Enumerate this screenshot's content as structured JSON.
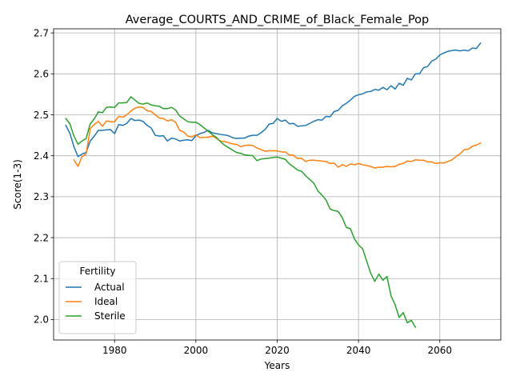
{
  "chart_data": {
    "type": "line",
    "title": "Average_COURTS_AND_CRIME_of_Black_Female_Pop",
    "xlabel": "Years",
    "ylabel": "Score(1-3)",
    "xlim": [
      1965,
      2075
    ],
    "ylim": [
      1.95,
      2.71
    ],
    "xticks": [
      1980,
      2000,
      2020,
      2040,
      2060
    ],
    "yticks": [
      "2.0",
      "2.1",
      "2.2",
      "2.3",
      "2.4",
      "2.5",
      "2.6",
      "2.7"
    ],
    "grid": true,
    "legend": {
      "title": "Fertility",
      "placement": "lower-left"
    },
    "series": [
      {
        "name": "Actual",
        "color": "#1f77b4",
        "points": [
          [
            1968,
            2.474
          ],
          [
            1969,
            2.455
          ],
          [
            1970,
            2.422
          ],
          [
            1971,
            2.398
          ],
          [
            1972,
            2.404
          ],
          [
            1973,
            2.408
          ],
          [
            1974,
            2.436
          ],
          [
            1975,
            2.448
          ],
          [
            1976,
            2.462
          ],
          [
            1977,
            2.462
          ],
          [
            1978,
            2.463
          ],
          [
            1979,
            2.464
          ],
          [
            1980,
            2.454
          ],
          [
            1981,
            2.476
          ],
          [
            1982,
            2.474
          ],
          [
            1983,
            2.479
          ],
          [
            1984,
            2.491
          ],
          [
            1985,
            2.486
          ],
          [
            1986,
            2.487
          ],
          [
            1987,
            2.484
          ],
          [
            1988,
            2.474
          ],
          [
            1989,
            2.468
          ],
          [
            1990,
            2.45
          ],
          [
            1991,
            2.448
          ],
          [
            1992,
            2.449
          ],
          [
            1993,
            2.436
          ],
          [
            1994,
            2.443
          ],
          [
            1995,
            2.441
          ],
          [
            1996,
            2.436
          ],
          [
            1997,
            2.438
          ],
          [
            1998,
            2.439
          ],
          [
            1999,
            2.437
          ],
          [
            2000,
            2.449
          ],
          [
            2001,
            2.454
          ],
          [
            2002,
            2.457
          ],
          [
            2003,
            2.462
          ],
          [
            2004,
            2.456
          ],
          [
            2005,
            2.454
          ],
          [
            2006,
            2.452
          ],
          [
            2007,
            2.451
          ],
          [
            2008,
            2.449
          ],
          [
            2009,
            2.444
          ],
          [
            2010,
            2.442
          ],
          [
            2011,
            2.443
          ],
          [
            2012,
            2.443
          ],
          [
            2013,
            2.448
          ],
          [
            2014,
            2.45
          ],
          [
            2015,
            2.45
          ],
          [
            2016,
            2.456
          ],
          [
            2017,
            2.464
          ],
          [
            2018,
            2.477
          ],
          [
            2019,
            2.479
          ],
          [
            2020,
            2.491
          ],
          [
            2021,
            2.484
          ],
          [
            2022,
            2.487
          ],
          [
            2023,
            2.478
          ],
          [
            2024,
            2.479
          ],
          [
            2025,
            2.472
          ],
          [
            2026,
            2.473
          ],
          [
            2027,
            2.474
          ],
          [
            2028,
            2.479
          ],
          [
            2029,
            2.484
          ],
          [
            2030,
            2.488
          ],
          [
            2031,
            2.487
          ],
          [
            2032,
            2.496
          ],
          [
            2033,
            2.495
          ],
          [
            2034,
            2.508
          ],
          [
            2035,
            2.511
          ],
          [
            2036,
            2.522
          ],
          [
            2037,
            2.528
          ],
          [
            2038,
            2.536
          ],
          [
            2039,
            2.545
          ],
          [
            2040,
            2.549
          ],
          [
            2041,
            2.551
          ],
          [
            2042,
            2.556
          ],
          [
            2043,
            2.557
          ],
          [
            2044,
            2.562
          ],
          [
            2045,
            2.56
          ],
          [
            2046,
            2.567
          ],
          [
            2047,
            2.561
          ],
          [
            2048,
            2.571
          ],
          [
            2049,
            2.563
          ],
          [
            2050,
            2.577
          ],
          [
            2051,
            2.572
          ],
          [
            2052,
            2.589
          ],
          [
            2053,
            2.585
          ],
          [
            2054,
            2.6
          ],
          [
            2055,
            2.6
          ],
          [
            2056,
            2.615
          ],
          [
            2057,
            2.618
          ],
          [
            2058,
            2.631
          ],
          [
            2059,
            2.636
          ],
          [
            2060,
            2.646
          ],
          [
            2061,
            2.651
          ],
          [
            2062,
            2.655
          ],
          [
            2063,
            2.657
          ],
          [
            2064,
            2.658
          ],
          [
            2065,
            2.656
          ],
          [
            2066,
            2.658
          ],
          [
            2067,
            2.656
          ],
          [
            2068,
            2.663
          ],
          [
            2069,
            2.662
          ],
          [
            2070,
            2.675
          ]
        ]
      },
      {
        "name": "Ideal",
        "color": "#ff7f0e",
        "points": [
          [
            1970,
            2.39
          ],
          [
            1971,
            2.374
          ],
          [
            1972,
            2.398
          ],
          [
            1973,
            2.404
          ],
          [
            1974,
            2.466
          ],
          [
            1975,
            2.476
          ],
          [
            1976,
            2.484
          ],
          [
            1977,
            2.472
          ],
          [
            1978,
            2.485
          ],
          [
            1979,
            2.483
          ],
          [
            1980,
            2.483
          ],
          [
            1981,
            2.496
          ],
          [
            1982,
            2.494
          ],
          [
            1983,
            2.5
          ],
          [
            1984,
            2.509
          ],
          [
            1985,
            2.516
          ],
          [
            1986,
            2.519
          ],
          [
            1987,
            2.518
          ],
          [
            1988,
            2.51
          ],
          [
            1989,
            2.508
          ],
          [
            1990,
            2.5
          ],
          [
            1991,
            2.492
          ],
          [
            1992,
            2.491
          ],
          [
            1993,
            2.485
          ],
          [
            1994,
            2.488
          ],
          [
            1995,
            2.482
          ],
          [
            1996,
            2.462
          ],
          [
            1997,
            2.458
          ],
          [
            1998,
            2.448
          ],
          [
            1999,
            2.446
          ],
          [
            2000,
            2.451
          ],
          [
            2001,
            2.444
          ],
          [
            2002,
            2.445
          ],
          [
            2003,
            2.445
          ],
          [
            2004,
            2.448
          ],
          [
            2005,
            2.443
          ],
          [
            2006,
            2.436
          ],
          [
            2007,
            2.435
          ],
          [
            2008,
            2.432
          ],
          [
            2009,
            2.429
          ],
          [
            2010,
            2.428
          ],
          [
            2011,
            2.422
          ],
          [
            2012,
            2.425
          ],
          [
            2013,
            2.426
          ],
          [
            2014,
            2.425
          ],
          [
            2015,
            2.419
          ],
          [
            2016,
            2.415
          ],
          [
            2017,
            2.411
          ],
          [
            2018,
            2.412
          ],
          [
            2019,
            2.412
          ],
          [
            2020,
            2.412
          ],
          [
            2021,
            2.409
          ],
          [
            2022,
            2.409
          ],
          [
            2023,
            2.402
          ],
          [
            2024,
            2.401
          ],
          [
            2025,
            2.393
          ],
          [
            2026,
            2.394
          ],
          [
            2027,
            2.386
          ],
          [
            2028,
            2.389
          ],
          [
            2029,
            2.389
          ],
          [
            2030,
            2.388
          ],
          [
            2031,
            2.387
          ],
          [
            2032,
            2.386
          ],
          [
            2033,
            2.381
          ],
          [
            2034,
            2.382
          ],
          [
            2035,
            2.372
          ],
          [
            2036,
            2.378
          ],
          [
            2037,
            2.374
          ],
          [
            2038,
            2.38
          ],
          [
            2039,
            2.378
          ],
          [
            2040,
            2.381
          ],
          [
            2041,
            2.378
          ],
          [
            2042,
            2.376
          ],
          [
            2043,
            2.374
          ],
          [
            2044,
            2.37
          ],
          [
            2045,
            2.372
          ],
          [
            2046,
            2.372
          ],
          [
            2047,
            2.374
          ],
          [
            2048,
            2.373
          ],
          [
            2049,
            2.374
          ],
          [
            2050,
            2.379
          ],
          [
            2051,
            2.381
          ],
          [
            2052,
            2.387
          ],
          [
            2053,
            2.386
          ],
          [
            2054,
            2.39
          ],
          [
            2055,
            2.389
          ],
          [
            2056,
            2.389
          ],
          [
            2057,
            2.385
          ],
          [
            2058,
            2.385
          ],
          [
            2059,
            2.381
          ],
          [
            2060,
            2.383
          ],
          [
            2061,
            2.382
          ],
          [
            2062,
            2.386
          ],
          [
            2063,
            2.39
          ],
          [
            2064,
            2.398
          ],
          [
            2065,
            2.405
          ],
          [
            2066,
            2.415
          ],
          [
            2067,
            2.416
          ],
          [
            2068,
            2.423
          ],
          [
            2069,
            2.426
          ],
          [
            2070,
            2.431
          ]
        ]
      },
      {
        "name": "Sterile",
        "color": "#2ca02c",
        "points": [
          [
            1968,
            2.491
          ],
          [
            1969,
            2.478
          ],
          [
            1970,
            2.448
          ],
          [
            1971,
            2.428
          ],
          [
            1972,
            2.436
          ],
          [
            1973,
            2.442
          ],
          [
            1974,
            2.478
          ],
          [
            1975,
            2.49
          ],
          [
            1976,
            2.507
          ],
          [
            1977,
            2.505
          ],
          [
            1978,
            2.518
          ],
          [
            1979,
            2.519
          ],
          [
            1980,
            2.518
          ],
          [
            1981,
            2.529
          ],
          [
            1982,
            2.529
          ],
          [
            1983,
            2.53
          ],
          [
            1984,
            2.544
          ],
          [
            1985,
            2.536
          ],
          [
            1986,
            2.528
          ],
          [
            1987,
            2.526
          ],
          [
            1988,
            2.529
          ],
          [
            1989,
            2.524
          ],
          [
            1990,
            2.522
          ],
          [
            1991,
            2.521
          ],
          [
            1992,
            2.515
          ],
          [
            1993,
            2.515
          ],
          [
            1994,
            2.518
          ],
          [
            1995,
            2.512
          ],
          [
            1996,
            2.497
          ],
          [
            1997,
            2.49
          ],
          [
            1998,
            2.483
          ],
          [
            1999,
            2.482
          ],
          [
            2000,
            2.482
          ],
          [
            2001,
            2.476
          ],
          [
            2002,
            2.468
          ],
          [
            2003,
            2.46
          ],
          [
            2004,
            2.452
          ],
          [
            2005,
            2.445
          ],
          [
            2006,
            2.435
          ],
          [
            2007,
            2.426
          ],
          [
            2008,
            2.42
          ],
          [
            2009,
            2.414
          ],
          [
            2010,
            2.408
          ],
          [
            2011,
            2.406
          ],
          [
            2012,
            2.402
          ],
          [
            2013,
            2.401
          ],
          [
            2014,
            2.4
          ],
          [
            2015,
            2.388
          ],
          [
            2016,
            2.392
          ],
          [
            2017,
            2.393
          ],
          [
            2018,
            2.394
          ],
          [
            2019,
            2.396
          ],
          [
            2020,
            2.397
          ],
          [
            2021,
            2.394
          ],
          [
            2022,
            2.391
          ],
          [
            2023,
            2.38
          ],
          [
            2024,
            2.373
          ],
          [
            2025,
            2.365
          ],
          [
            2026,
            2.362
          ],
          [
            2027,
            2.351
          ],
          [
            2028,
            2.342
          ],
          [
            2029,
            2.333
          ],
          [
            2030,
            2.314
          ],
          [
            2031,
            2.304
          ],
          [
            2032,
            2.292
          ],
          [
            2033,
            2.27
          ],
          [
            2034,
            2.266
          ],
          [
            2035,
            2.264
          ],
          [
            2036,
            2.249
          ],
          [
            2037,
            2.225
          ],
          [
            2038,
            2.222
          ],
          [
            2039,
            2.197
          ],
          [
            2040,
            2.182
          ],
          [
            2041,
            2.173
          ],
          [
            2042,
            2.143
          ],
          [
            2043,
            2.113
          ],
          [
            2044,
            2.093
          ],
          [
            2045,
            2.111
          ],
          [
            2046,
            2.096
          ],
          [
            2047,
            2.105
          ],
          [
            2048,
            2.058
          ],
          [
            2049,
            2.036
          ],
          [
            2050,
            2.005
          ],
          [
            2051,
            2.017
          ],
          [
            2052,
            1.992
          ],
          [
            2053,
            1.998
          ],
          [
            2054,
            1.981
          ]
        ]
      }
    ]
  }
}
